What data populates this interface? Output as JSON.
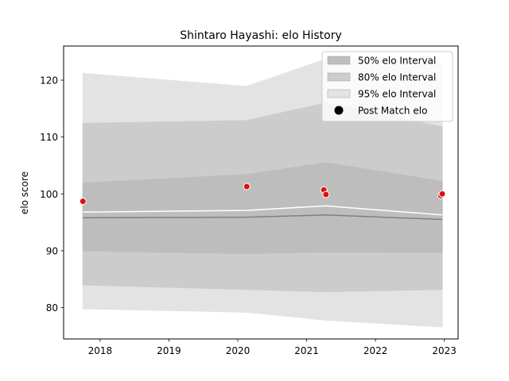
{
  "chart_data": {
    "type": "area",
    "title": "Shintaro Hayashi: elo History",
    "xlabel": "",
    "ylabel": "elo score",
    "xlim": [
      2017.47,
      2023.2
    ],
    "ylim": [
      74.5,
      126
    ],
    "xticks": [
      {
        "value": 2018,
        "label": "2018"
      },
      {
        "value": 2019,
        "label": "2019"
      },
      {
        "value": 2020,
        "label": "2020"
      },
      {
        "value": 2021,
        "label": "2021"
      },
      {
        "value": 2022,
        "label": "2022"
      },
      {
        "value": 2023,
        "label": "2023"
      }
    ],
    "yticks": [
      {
        "value": 80,
        "label": "80"
      },
      {
        "value": 90,
        "label": "90"
      },
      {
        "value": 100,
        "label": "100"
      },
      {
        "value": 110,
        "label": "110"
      },
      {
        "value": 120,
        "label": "120"
      }
    ],
    "grid": false,
    "legend_position": "top-right",
    "x": [
      2017.75,
      2020.13,
      2021.28,
      2022.97
    ],
    "series": [
      {
        "name": "95% elo Interval",
        "kind": "band",
        "color": "#e3e3e3",
        "lower": [
          79.8,
          79.2,
          77.8,
          76.6
        ],
        "upper": [
          121.2,
          118.9,
          123.7,
          123.0
        ]
      },
      {
        "name": "80% elo Interval",
        "kind": "band",
        "color": "#cccccc",
        "lower": [
          84.0,
          83.2,
          82.8,
          83.2
        ],
        "upper": [
          112.4,
          112.9,
          116.0,
          111.8
        ]
      },
      {
        "name": "50% elo Interval",
        "kind": "band",
        "color": "#bdbdbd",
        "lower": [
          90.0,
          89.5,
          89.8,
          89.7
        ],
        "upper": [
          101.9,
          103.4,
          105.5,
          102.2
        ]
      },
      {
        "kind": "line",
        "color": "#808080",
        "values": [
          95.8,
          95.9,
          96.3,
          95.5
        ]
      },
      {
        "kind": "line",
        "color": "#ffffff",
        "values": [
          96.8,
          97.1,
          97.9,
          96.3
        ]
      }
    ],
    "points": {
      "name": "Post Match elo",
      "color": "#dd1111",
      "x": [
        2017.75,
        2020.13,
        2021.25,
        2021.28,
        2022.95,
        2022.97
      ],
      "y": [
        98.7,
        101.3,
        100.7,
        99.9,
        99.7,
        100.0
      ]
    }
  }
}
